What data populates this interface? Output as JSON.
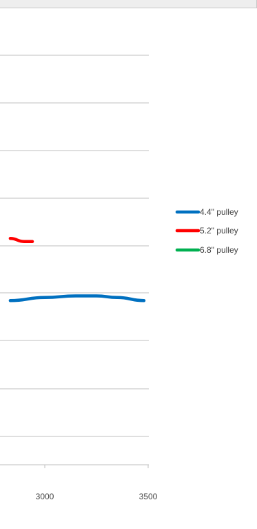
{
  "chart_data": {
    "type": "line",
    "x_tick_labels": [
      "3000",
      "3500"
    ],
    "xlim_visible": [
      2833,
      3500
    ],
    "grid": "horizontal",
    "legend_position": "right",
    "series": [
      {
        "name": "4.4\" pulley",
        "color": "#0070c0",
        "x": [
          2833,
          3000,
          3150,
          3250,
          3350,
          3480
        ],
        "y": [
          0.495,
          0.497,
          0.498,
          0.498,
          0.497,
          0.495
        ]
      },
      {
        "name": "5.2\" pulley",
        "color": "#ff0000",
        "x": [
          2833,
          2900,
          2940
        ],
        "y": [
          0.535,
          0.533,
          0.533
        ]
      },
      {
        "name": "6.8\" pulley",
        "color": "#00b050",
        "x": [],
        "y": []
      }
    ]
  }
}
